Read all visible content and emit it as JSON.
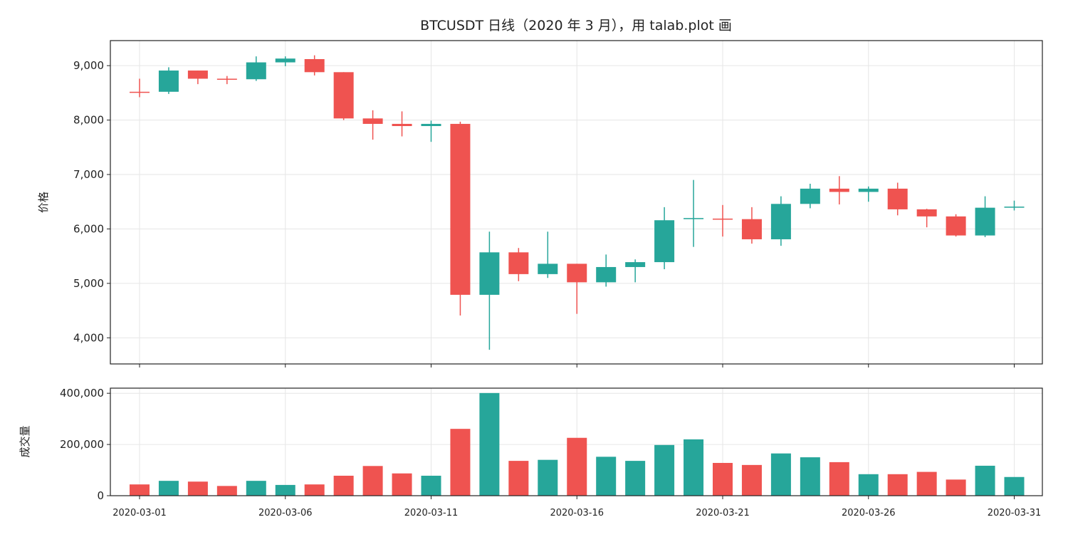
{
  "chart_data": {
    "type": "candlestick",
    "title": "BTCUSDT 日线（2020 年 3 月），用 talab.plot 画",
    "colors": {
      "up": "#26a69a",
      "down": "#ef5350",
      "grid": "#e6e6e6",
      "axis": "#222222"
    },
    "grid": true,
    "x_tick_labels": [
      "2020-03-01",
      "2020-03-06",
      "2020-03-11",
      "2020-03-16",
      "2020-03-21",
      "2020-03-26",
      "2020-03-31"
    ],
    "price_panel": {
      "ylabel": "价格",
      "ylim": [
        3520,
        9460
      ],
      "yticks": [
        4000,
        5000,
        6000,
        7000,
        8000,
        9000
      ],
      "ytick_labels": [
        "4,000",
        "5,000",
        "6,000",
        "7,000",
        "8,000",
        "9,000"
      ]
    },
    "volume_panel": {
      "ylabel": "成交量",
      "ylim": [
        0,
        420000
      ],
      "yticks": [
        0,
        200000,
        400000
      ],
      "ytick_labels": [
        "0",
        "200,000",
        "400,000"
      ]
    },
    "dates": [
      "2020-03-01",
      "2020-03-02",
      "2020-03-03",
      "2020-03-04",
      "2020-03-05",
      "2020-03-06",
      "2020-03-07",
      "2020-03-08",
      "2020-03-09",
      "2020-03-10",
      "2020-03-11",
      "2020-03-12",
      "2020-03-13",
      "2020-03-14",
      "2020-03-15",
      "2020-03-16",
      "2020-03-17",
      "2020-03-18",
      "2020-03-19",
      "2020-03-20",
      "2020-03-21",
      "2020-03-22",
      "2020-03-23",
      "2020-03-24",
      "2020-03-25",
      "2020-03-26",
      "2020-03-27",
      "2020-03-28",
      "2020-03-29",
      "2020-03-30",
      "2020-03-31"
    ],
    "open": [
      8520,
      8520,
      8910,
      8760,
      8750,
      9060,
      9120,
      8880,
      8030,
      7930,
      7890,
      7930,
      4790,
      5570,
      5170,
      5360,
      5020,
      5300,
      5390,
      6180,
      6190,
      6180,
      5810,
      6460,
      6740,
      6680,
      6740,
      6360,
      6230,
      5880,
      6390
    ],
    "high": [
      8760,
      8970,
      8910,
      8810,
      9170,
      9170,
      9190,
      8880,
      8180,
      8160,
      7990,
      7970,
      5950,
      5650,
      5950,
      5360,
      5530,
      5440,
      6400,
      6900,
      6440,
      6400,
      6600,
      6830,
      6970,
      6780,
      6850,
      6370,
      6270,
      6600,
      6520
    ],
    "low": [
      8420,
      8480,
      8660,
      8660,
      8720,
      8990,
      8820,
      8000,
      7640,
      7700,
      7600,
      4410,
      3780,
      5040,
      5100,
      4440,
      4940,
      5020,
      5260,
      5670,
      5860,
      5730,
      5690,
      6380,
      6450,
      6500,
      6250,
      6030,
      5860,
      5850,
      6340
    ],
    "close": [
      8510,
      8910,
      8760,
      8750,
      9060,
      9130,
      8880,
      8030,
      7930,
      7890,
      7930,
      4790,
      5570,
      5170,
      5360,
      5020,
      5300,
      5390,
      6160,
      6200,
      6170,
      5810,
      6460,
      6740,
      6680,
      6740,
      6360,
      6230,
      5880,
      6390,
      6410
    ],
    "volume": [
      44000,
      58000,
      55000,
      38000,
      58000,
      42000,
      44000,
      78000,
      116000,
      87000,
      78000,
      261000,
      401000,
      136000,
      140000,
      226000,
      152000,
      136000,
      198000,
      220000,
      128000,
      120000,
      165000,
      150000,
      131000,
      84000,
      84000,
      93000,
      63000,
      117000,
      73000
    ]
  }
}
